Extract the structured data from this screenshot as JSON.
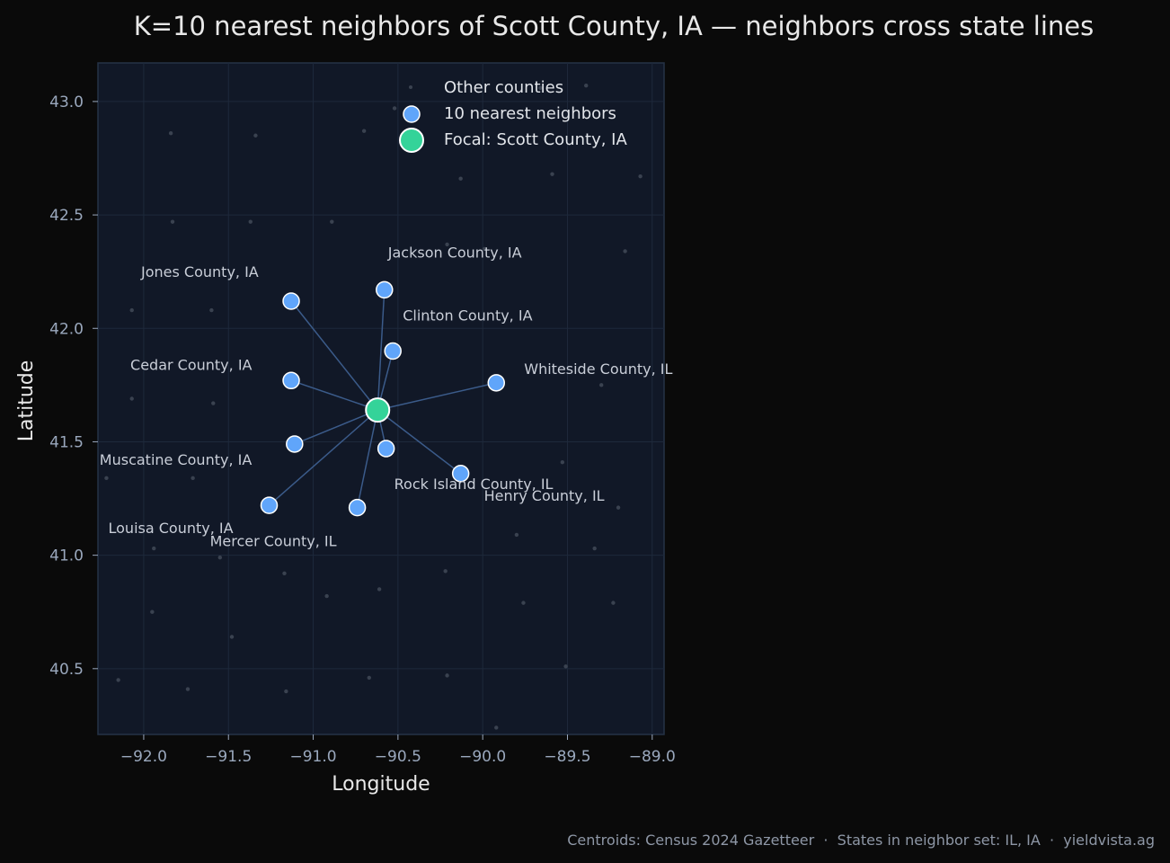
{
  "chart_data": {
    "type": "scatter",
    "title": "K=10 nearest neighbors of Scott County, IA — neighbors cross state lines",
    "xlabel": "Longitude",
    "ylabel": "Latitude",
    "xlim": [
      -92.27,
      -88.93
    ],
    "ylim": [
      40.21,
      43.17
    ],
    "xticks": [
      -92.0,
      -91.5,
      -91.0,
      -90.5,
      -90.0,
      -89.5,
      -89.0
    ],
    "xtick_labels": [
      "−92.0",
      "−91.5",
      "−91.0",
      "−90.5",
      "−90.0",
      "−89.5",
      "−89.0"
    ],
    "yticks": [
      40.5,
      41.0,
      41.5,
      42.0,
      42.5,
      43.0
    ],
    "ytick_labels": [
      "40.5",
      "41.0",
      "41.5",
      "42.0",
      "42.5",
      "43.0"
    ],
    "grid": true,
    "legend": {
      "placement": "top-center",
      "entries": [
        "Other counties",
        "10 nearest neighbors",
        "Focal: Scott County, IA"
      ]
    },
    "focal": {
      "name": "Scott County, IA",
      "lon": -90.62,
      "lat": 41.64
    },
    "neighbors": [
      {
        "name": "Jackson County, IA",
        "lon": -90.58,
        "lat": 42.17
      },
      {
        "name": "Jones County, IA",
        "lon": -91.13,
        "lat": 42.12
      },
      {
        "name": "Clinton County, IA",
        "lon": -90.53,
        "lat": 41.9
      },
      {
        "name": "Cedar County, IA",
        "lon": -91.13,
        "lat": 41.77
      },
      {
        "name": "Whiteside County, IL",
        "lon": -89.92,
        "lat": 41.76
      },
      {
        "name": "Muscatine County, IA",
        "lon": -91.11,
        "lat": 41.49
      },
      {
        "name": "Rock Island County, IL",
        "lon": -90.57,
        "lat": 41.47
      },
      {
        "name": "Henry County, IL",
        "lon": -90.13,
        "lat": 41.36
      },
      {
        "name": "Louisa County, IA",
        "lon": -91.26,
        "lat": 41.22
      },
      {
        "name": "Mercer County, IL",
        "lon": -90.74,
        "lat": 41.21
      }
    ],
    "other_counties": [
      [
        -90.52,
        42.97
      ],
      [
        -89.66,
        43.06
      ],
      [
        -89.39,
        43.07
      ],
      [
        -91.84,
        42.86
      ],
      [
        -91.34,
        42.85
      ],
      [
        -90.7,
        42.87
      ],
      [
        -89.59,
        42.68
      ],
      [
        -90.13,
        42.66
      ],
      [
        -89.07,
        42.67
      ],
      [
        -91.83,
        42.47
      ],
      [
        -91.37,
        42.47
      ],
      [
        -90.89,
        42.47
      ],
      [
        -89.99,
        42.35
      ],
      [
        -90.21,
        42.37
      ],
      [
        -89.16,
        42.34
      ],
      [
        -92.07,
        42.08
      ],
      [
        -91.6,
        42.08
      ],
      [
        -90.32,
        42.04
      ],
      [
        -89.3,
        41.75
      ],
      [
        -92.07,
        41.69
      ],
      [
        -91.59,
        41.67
      ],
      [
        -92.22,
        41.34
      ],
      [
        -91.71,
        41.34
      ],
      [
        -89.53,
        41.41
      ],
      [
        -89.2,
        41.21
      ],
      [
        -89.8,
        41.09
      ],
      [
        -91.94,
        41.03
      ],
      [
        -91.55,
        40.99
      ],
      [
        -89.34,
        41.03
      ],
      [
        -91.17,
        40.92
      ],
      [
        -90.22,
        40.93
      ],
      [
        -90.92,
        40.82
      ],
      [
        -90.61,
        40.85
      ],
      [
        -89.76,
        40.79
      ],
      [
        -89.23,
        40.79
      ],
      [
        -91.95,
        40.75
      ],
      [
        -91.48,
        40.64
      ],
      [
        -89.51,
        40.51
      ],
      [
        -90.21,
        40.47
      ],
      [
        -92.15,
        40.45
      ],
      [
        -90.67,
        40.46
      ],
      [
        -91.74,
        40.41
      ],
      [
        -91.16,
        40.4
      ],
      [
        -89.92,
        40.24
      ]
    ]
  },
  "footer": "Centroids: Census 2024 Gazetteer  ·  States in neighbor set: IL, IA  ·  yieldvista.ag",
  "colors": {
    "background": "#0a0a0a",
    "plot_bg": "#111827",
    "focal": "#34d399",
    "neighbor": "#60a5fa",
    "edge": "#3b5b8a",
    "other": "#3a4250"
  }
}
